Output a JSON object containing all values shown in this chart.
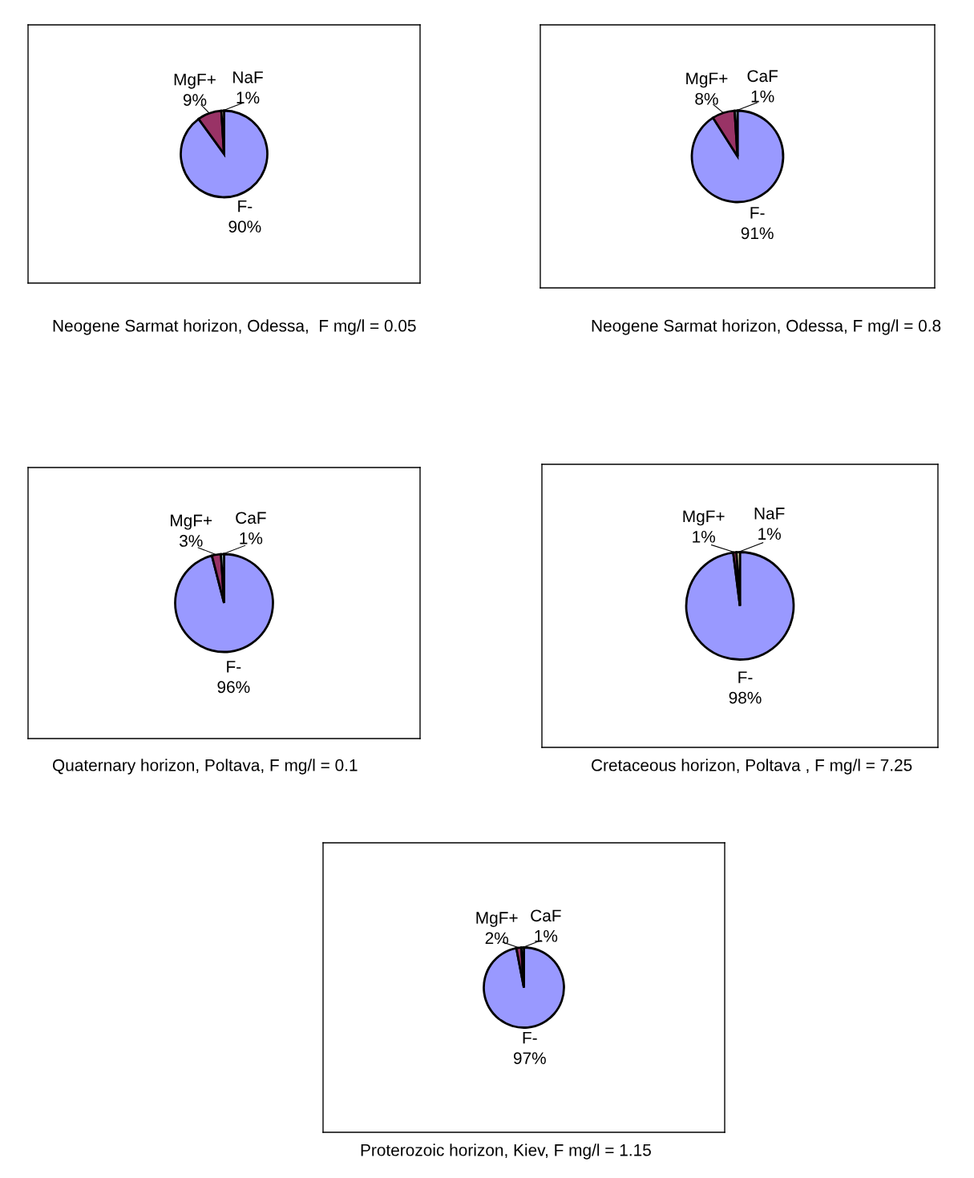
{
  "chart_data": [
    {
      "type": "pie",
      "title": "Neogene Sarmat horizon, Odessa,  F mg/l = 0.05",
      "categories": [
        "F-",
        "MgF+",
        "NaF"
      ],
      "values": [
        90,
        9,
        1
      ],
      "value_labels": [
        "90%",
        "9%",
        "1%"
      ],
      "colors": [
        "#9999ff",
        "#993366",
        "#ffffcc"
      ],
      "legend": false
    },
    {
      "type": "pie",
      "title": "Neogene Sarmat horizon, Odessa, F mg/l = 0.8",
      "categories": [
        "F-",
        "MgF+",
        "CaF"
      ],
      "values": [
        91,
        8,
        1
      ],
      "value_labels": [
        "91%",
        "8%",
        "1%"
      ],
      "colors": [
        "#9999ff",
        "#993366",
        "#ccffff"
      ],
      "legend": false
    },
    {
      "type": "pie",
      "title": "Quaternary horizon, Poltava, F mg/l = 0.1",
      "categories": [
        "F-",
        "MgF+",
        "CaF"
      ],
      "values": [
        96,
        3,
        1
      ],
      "value_labels": [
        "96%",
        "3%",
        "1%"
      ],
      "colors": [
        "#9999ff",
        "#993366",
        "#ccffff"
      ],
      "legend": false
    },
    {
      "type": "pie",
      "title": "Cretaceous horizon, Poltava , F mg/l = 7.25",
      "categories": [
        "F-",
        "MgF+",
        "NaF"
      ],
      "values": [
        98,
        1,
        1
      ],
      "value_labels": [
        "98%",
        "1%",
        "1%"
      ],
      "colors": [
        "#9999ff",
        "#993366",
        "#ffffcc"
      ],
      "legend": false
    },
    {
      "type": "pie",
      "title": "Proterozoic horizon, Kiev, F mg/l = 1.15",
      "categories": [
        "F-",
        "MgF+",
        "CaF"
      ],
      "values": [
        97,
        2,
        1
      ],
      "value_labels": [
        "97%",
        "2%",
        "1%"
      ],
      "colors": [
        "#9999ff",
        "#993366",
        "#ccffff"
      ],
      "legend": false
    }
  ]
}
